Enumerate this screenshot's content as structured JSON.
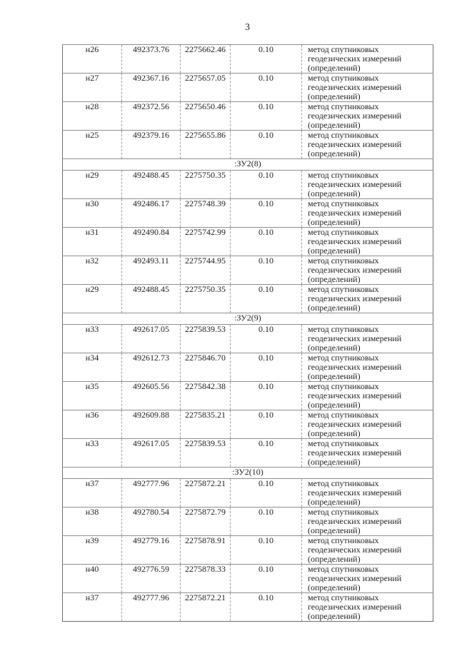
{
  "page": {
    "number": "3"
  },
  "table": {
    "sections": [
      {
        "header": null,
        "rows": [
          {
            "name": "н26",
            "x": "492373.76",
            "y": "2275662.46",
            "accuracy": "0.10",
            "method": "метод спутниковых геодезических измерений (определений)"
          },
          {
            "name": "н27",
            "x": "492367.16",
            "y": "2275657.05",
            "accuracy": "0.10",
            "method": "метод спутниковых геодезических измерений (определений)"
          },
          {
            "name": "н28",
            "x": "492372.56",
            "y": "2275650.46",
            "accuracy": "0.10",
            "method": "метод спутниковых геодезических измерений (определений)"
          },
          {
            "name": "н25",
            "x": "492379.16",
            "y": "2275655.86",
            "accuracy": "0.10",
            "method": "метод спутниковых геодезических измерений (определений)"
          }
        ]
      },
      {
        "header": ":ЗУ2(8)",
        "rows": [
          {
            "name": "н29",
            "x": "492488.45",
            "y": "2275750.35",
            "accuracy": "0.10",
            "method": "метод спутниковых геодезических измерений (определений)"
          },
          {
            "name": "н30",
            "x": "492486.17",
            "y": "2275748.39",
            "accuracy": "0.10",
            "method": "метод спутниковых геодезических измерений (определений)"
          },
          {
            "name": "н31",
            "x": "492490.84",
            "y": "2275742.99",
            "accuracy": "0.10",
            "method": "метод спутниковых геодезических измерений (определений)"
          },
          {
            "name": "н32",
            "x": "492493.11",
            "y": "2275744.95",
            "accuracy": "0.10",
            "method": "метод спутниковых геодезических измерений (определений)"
          },
          {
            "name": "н29",
            "x": "492488.45",
            "y": "2275750.35",
            "accuracy": "0.10",
            "method": "метод спутниковых геодезических измерений (определений)"
          }
        ]
      },
      {
        "header": ":ЗУ2(9)",
        "rows": [
          {
            "name": "н33",
            "x": "492617.05",
            "y": "2275839.53",
            "accuracy": "0.10",
            "method": "метод спутниковых геодезических измерений (определений)"
          },
          {
            "name": "н34",
            "x": "492612.73",
            "y": "2275846.70",
            "accuracy": "0.10",
            "method": "метод спутниковых геодезических измерений (определений)"
          },
          {
            "name": "н35",
            "x": "492605.56",
            "y": "2275842.38",
            "accuracy": "0.10",
            "method": "метод спутниковых геодезических измерений (определений)"
          },
          {
            "name": "н36",
            "x": "492609.88",
            "y": "2275835.21",
            "accuracy": "0.10",
            "method": "метод спутниковых геодезических измерений (определений)"
          },
          {
            "name": "н33",
            "x": "492617.05",
            "y": "2275839.53",
            "accuracy": "0.10",
            "method": "метод спутниковых геодезических измерений (определений)"
          }
        ]
      },
      {
        "header": ":ЗУ2(10)",
        "rows": [
          {
            "name": "н37",
            "x": "492777.96",
            "y": "2275872.21",
            "accuracy": "0.10",
            "method": "метод спутниковых геодезических измерений (определений)"
          },
          {
            "name": "н38",
            "x": "492780.54",
            "y": "2275872.79",
            "accuracy": "0.10",
            "method": "метод спутниковых геодезических измерений (определений)"
          },
          {
            "name": "н39",
            "x": "492779.16",
            "y": "2275878.91",
            "accuracy": "0.10",
            "method": "метод спутниковых геодезических измерений (определений)"
          },
          {
            "name": "н40",
            "x": "492776.59",
            "y": "2275878.33",
            "accuracy": "0.10",
            "method": "метод спутниковых геодезических измерений (определений)"
          },
          {
            "name": "н37",
            "x": "492777.96",
            "y": "2275872.21",
            "accuracy": "0.10",
            "method": "метод спутниковых геодезических измерений (определений)"
          }
        ]
      }
    ]
  }
}
